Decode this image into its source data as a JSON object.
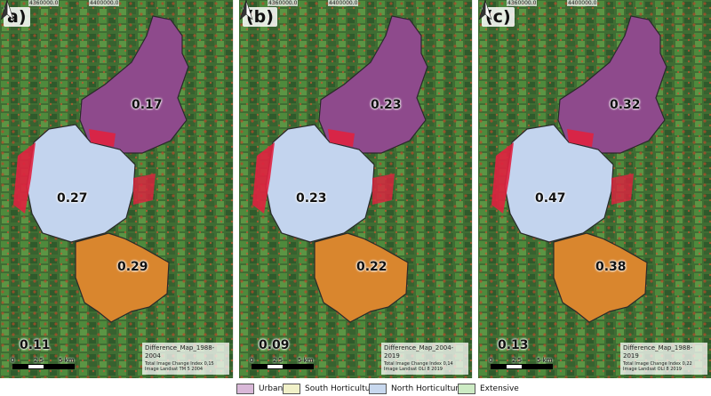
{
  "panels": [
    {
      "letter": "a)",
      "coords": [
        "4360000.0",
        "4400000.0"
      ],
      "values": {
        "urban": "0.17",
        "north": "0.27",
        "south": "0.29",
        "extensive": "0.11"
      },
      "info": {
        "title": "Difference_Map_1988-2004",
        "index": "Total Image Change Index 0,15",
        "image": "Image Landsat TM 5 2004"
      }
    },
    {
      "letter": "(b)",
      "coords": [
        "4360000.0",
        "4400000.0"
      ],
      "values": {
        "urban": "0.23",
        "north": "0.23",
        "south": "0.22",
        "extensive": "0.09"
      },
      "info": {
        "title": "Difference_Map_2004-2019",
        "index": "Total Image Change Index 0,14",
        "image": "Image Landsat OLI 8 2019"
      }
    },
    {
      "letter": "(c)",
      "coords": [
        "4360000.0",
        "4400000.0"
      ],
      "values": {
        "urban": "0.32",
        "north": "0.47",
        "south": "0.38",
        "extensive": "0.13"
      },
      "info": {
        "title": "Difference_Map_1988-2019",
        "index": "Total Image Change Index 0,22",
        "image": "Image Landsat OLI 8 2019"
      }
    }
  ],
  "scalebar": {
    "a": "0",
    "b": "2.5",
    "c": "5 km"
  },
  "legend": [
    {
      "label": "Urban",
      "color": "#d9b8d8"
    },
    {
      "label": "South Horticulture",
      "color": "#f1f1c8"
    },
    {
      "label": "North Horticulture",
      "color": "#c8d8ee"
    },
    {
      "label": "Extensive",
      "color": "#cdebc4"
    }
  ],
  "colors": {
    "urban_fill": "#8e4a8c",
    "north_fill": "#c3d4ee",
    "south_fill": "#d9862e",
    "change_red": "#e0213f",
    "ground": "#3e6b32"
  }
}
